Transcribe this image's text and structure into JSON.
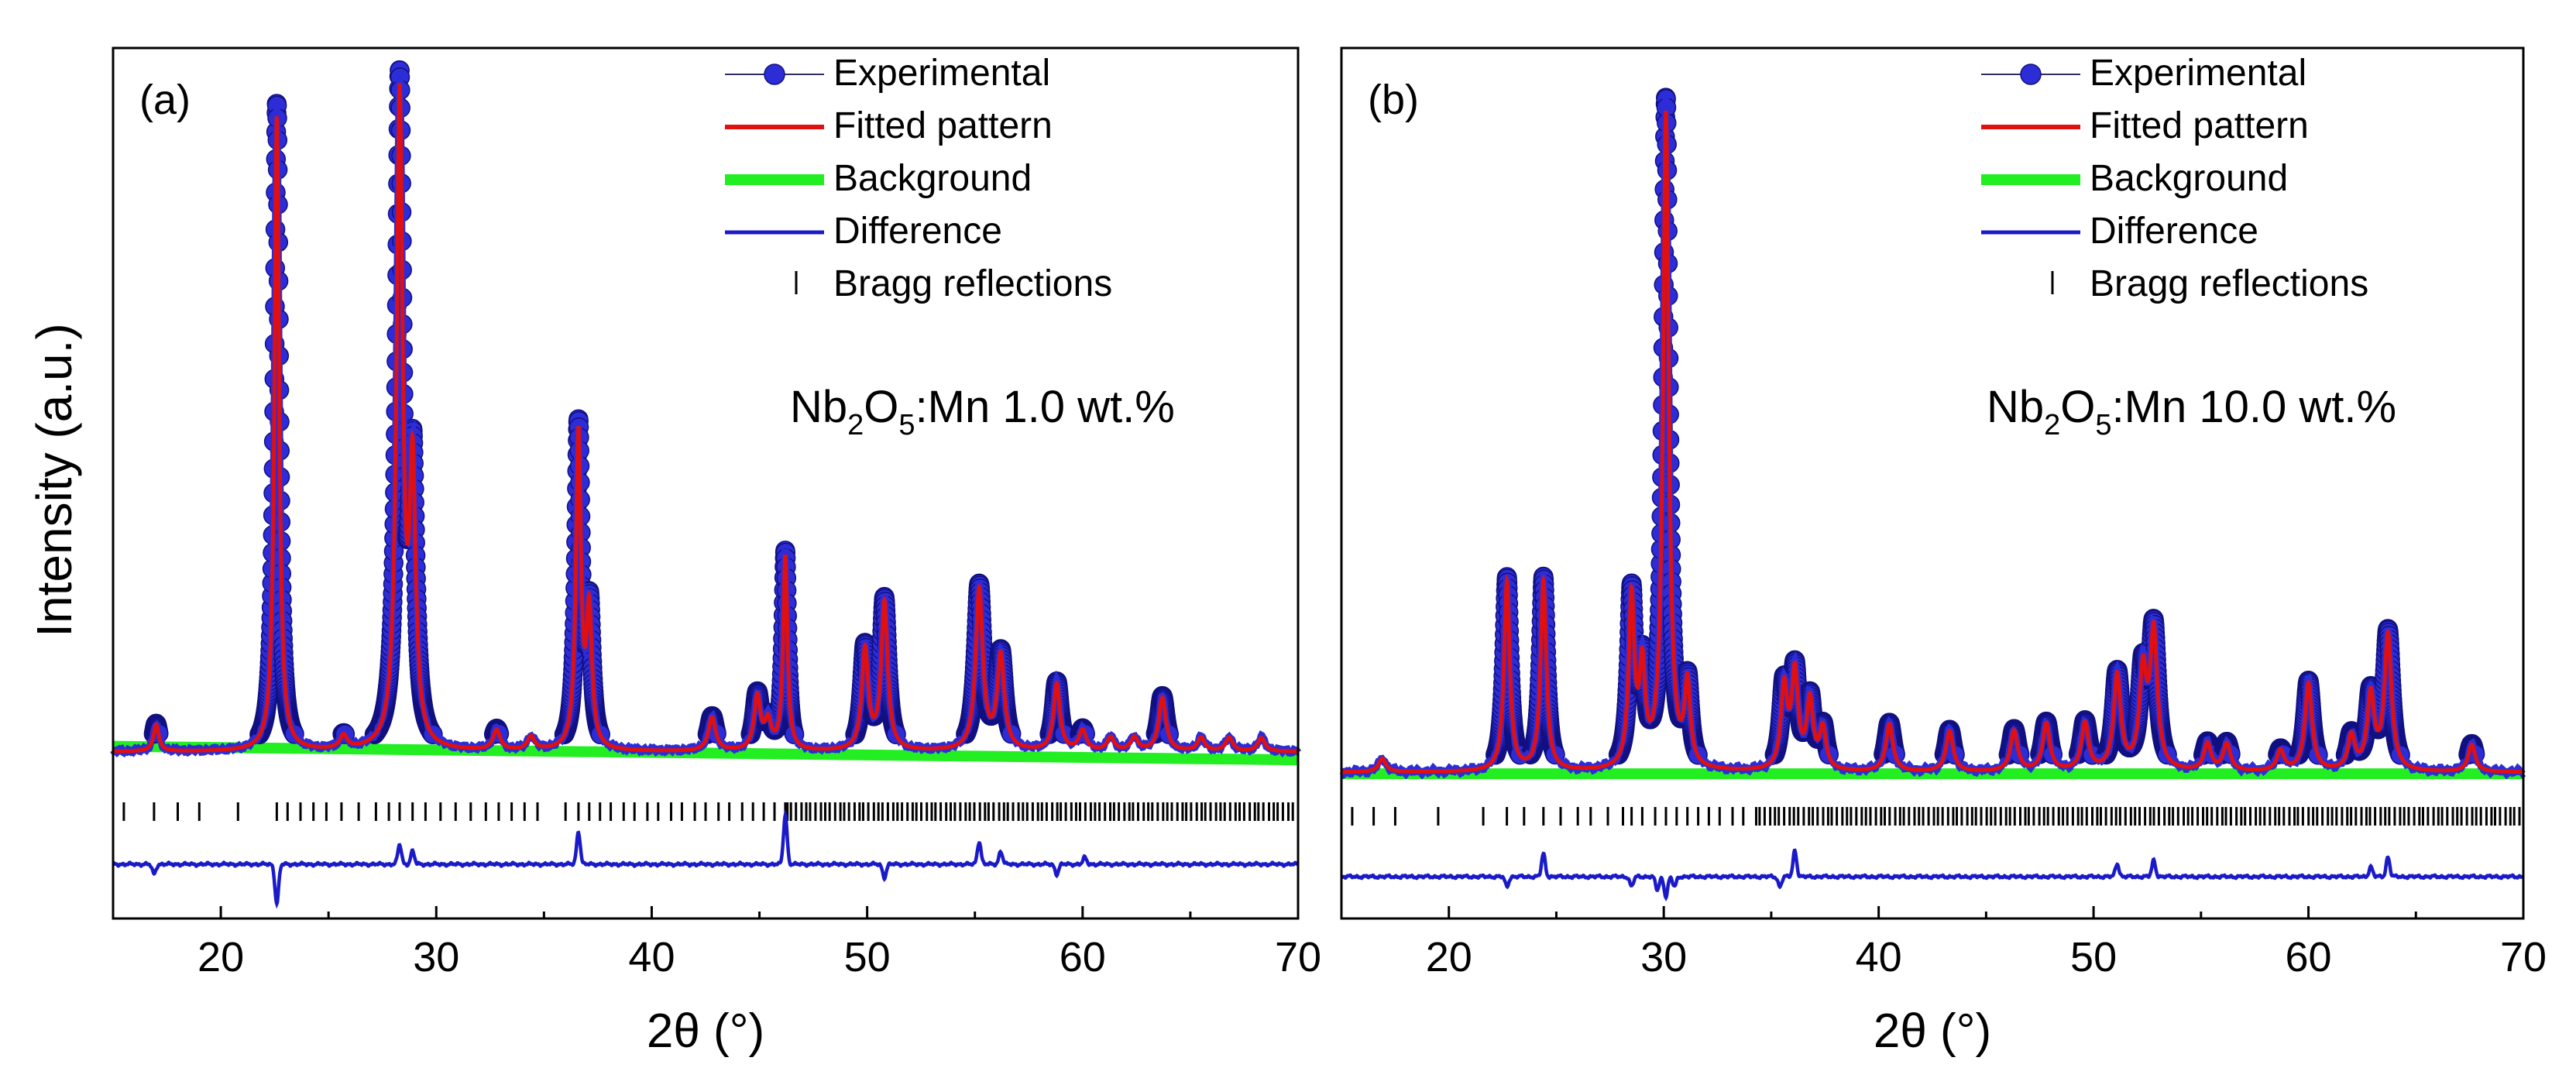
{
  "figure": {
    "ylabel": "Intensity (a.u.)",
    "xlabel": "2θ (°)",
    "legend": [
      {
        "key": "experimental",
        "label": "Experimental"
      },
      {
        "key": "fitted",
        "label": "Fitted pattern"
      },
      {
        "key": "background",
        "label": "Background"
      },
      {
        "key": "difference",
        "label": "Difference"
      },
      {
        "key": "bragg",
        "label": "Bragg reflections"
      }
    ]
  },
  "colors": {
    "experimental": "#2d2dd8",
    "fitted": "#e01010",
    "background": "#22ee22",
    "difference": "#1a1ac8",
    "bragg": "#000000"
  },
  "chart_data": [
    {
      "type": "line",
      "panel_label": "(a)",
      "sample": {
        "formula_main": "Nb",
        "sub1": "2",
        "formula_mid": "O",
        "sub2": "5",
        "suffix": ":Mn 1.0 wt.%"
      },
      "xlim": [
        15,
        70
      ],
      "xticks": [
        20,
        30,
        40,
        50,
        60,
        70
      ],
      "xlabel": "2θ (°)",
      "ylabel": "Intensity (a.u.)",
      "ylim": [
        0,
        100
      ],
      "baseline": 2,
      "background": [
        3,
        1
      ],
      "peaks": [
        {
          "x": 17.0,
          "h": 4,
          "w": 0.15
        },
        {
          "x": 22.6,
          "h": 95,
          "w": 0.13
        },
        {
          "x": 25.7,
          "h": 2,
          "w": 0.2
        },
        {
          "x": 28.3,
          "h": 97,
          "w": 0.17
        },
        {
          "x": 28.9,
          "h": 40,
          "w": 0.17
        },
        {
          "x": 32.8,
          "h": 3,
          "w": 0.2
        },
        {
          "x": 34.4,
          "h": 2,
          "w": 0.2
        },
        {
          "x": 36.6,
          "h": 47,
          "w": 0.14
        },
        {
          "x": 37.1,
          "h": 20,
          "w": 0.15
        },
        {
          "x": 42.8,
          "h": 5,
          "w": 0.2
        },
        {
          "x": 44.9,
          "h": 8,
          "w": 0.18
        },
        {
          "x": 45.4,
          "h": 4,
          "w": 0.18
        },
        {
          "x": 46.2,
          "h": 29,
          "w": 0.12
        },
        {
          "x": 49.9,
          "h": 15,
          "w": 0.18
        },
        {
          "x": 50.8,
          "h": 22,
          "w": 0.18
        },
        {
          "x": 55.2,
          "h": 24,
          "w": 0.2
        },
        {
          "x": 56.2,
          "h": 14,
          "w": 0.2
        },
        {
          "x": 58.8,
          "h": 10,
          "w": 0.18
        },
        {
          "x": 60.0,
          "h": 3,
          "w": 0.2
        },
        {
          "x": 61.3,
          "h": 2,
          "w": 0.2
        },
        {
          "x": 62.4,
          "h": 2,
          "w": 0.2
        },
        {
          "x": 63.7,
          "h": 8,
          "w": 0.2
        },
        {
          "x": 65.5,
          "h": 2,
          "w": 0.2
        },
        {
          "x": 66.8,
          "h": 2,
          "w": 0.2
        },
        {
          "x": 68.3,
          "h": 2,
          "w": 0.2
        }
      ],
      "bragg_dense_from": 46,
      "bragg_reflections": [
        15.5,
        16.9,
        18.0,
        19.0,
        20.8,
        22.6,
        23.1,
        23.7,
        24.3,
        24.9,
        25.6,
        26.4,
        27.2,
        27.8,
        28.3,
        28.9,
        29.5,
        30.2,
        30.9,
        31.6,
        32.3,
        32.9,
        33.5,
        34.1,
        34.7,
        36.0,
        36.6,
        37.1,
        37.6,
        38.1,
        38.7,
        39.2,
        39.8,
        40.3,
        40.9,
        41.4,
        42.0,
        42.5,
        43.1,
        43.6,
        44.2,
        44.7,
        45.2,
        45.7,
        46.2
      ],
      "difference_features": [
        {
          "x": 16.9,
          "d": -3
        },
        {
          "x": 22.6,
          "d": -12
        },
        {
          "x": 28.3,
          "d": 6
        },
        {
          "x": 28.9,
          "d": 4
        },
        {
          "x": 36.6,
          "d": 10
        },
        {
          "x": 46.2,
          "d": 15
        },
        {
          "x": 50.8,
          "d": -4
        },
        {
          "x": 55.2,
          "d": 7
        },
        {
          "x": 56.2,
          "d": 4
        },
        {
          "x": 58.8,
          "d": -3
        },
        {
          "x": 60.1,
          "d": 2
        }
      ]
    },
    {
      "type": "line",
      "panel_label": "(b)",
      "sample": {
        "formula_main": "Nb",
        "sub1": "2",
        "formula_mid": "O",
        "sub2": "5",
        "suffix": ":Mn 10.0 wt.%"
      },
      "xlim": [
        15,
        70
      ],
      "xticks": [
        20,
        30,
        40,
        50,
        60,
        70
      ],
      "xlabel": "2θ (°)",
      "ylabel": "Intensity (a.u.)",
      "ylim": [
        0,
        100
      ],
      "baseline": 1,
      "background": [
        1,
        1
      ],
      "peaks": [
        {
          "x": 16.9,
          "h": 2,
          "w": 0.2
        },
        {
          "x": 22.7,
          "h": 28,
          "w": 0.16
        },
        {
          "x": 24.4,
          "h": 28,
          "w": 0.16
        },
        {
          "x": 28.5,
          "h": 25,
          "w": 0.16
        },
        {
          "x": 29.0,
          "h": 14,
          "w": 0.16
        },
        {
          "x": 30.1,
          "h": 97,
          "w": 0.16
        },
        {
          "x": 31.1,
          "h": 12,
          "w": 0.16
        },
        {
          "x": 35.6,
          "h": 12,
          "w": 0.18
        },
        {
          "x": 36.1,
          "h": 14,
          "w": 0.18
        },
        {
          "x": 36.8,
          "h": 10,
          "w": 0.18
        },
        {
          "x": 37.4,
          "h": 6,
          "w": 0.18
        },
        {
          "x": 40.5,
          "h": 7,
          "w": 0.2
        },
        {
          "x": 43.3,
          "h": 6,
          "w": 0.2
        },
        {
          "x": 46.3,
          "h": 6,
          "w": 0.2
        },
        {
          "x": 47.8,
          "h": 7,
          "w": 0.2
        },
        {
          "x": 49.6,
          "h": 7,
          "w": 0.2
        },
        {
          "x": 51.1,
          "h": 14,
          "w": 0.2
        },
        {
          "x": 52.3,
          "h": 14,
          "w": 0.2
        },
        {
          "x": 52.8,
          "h": 20,
          "w": 0.2
        },
        {
          "x": 55.3,
          "h": 4,
          "w": 0.2
        },
        {
          "x": 56.2,
          "h": 4,
          "w": 0.2
        },
        {
          "x": 58.7,
          "h": 3,
          "w": 0.2
        },
        {
          "x": 60.0,
          "h": 13,
          "w": 0.2
        },
        {
          "x": 62.0,
          "h": 5,
          "w": 0.2
        },
        {
          "x": 62.9,
          "h": 11,
          "w": 0.2
        },
        {
          "x": 63.7,
          "h": 20,
          "w": 0.2
        },
        {
          "x": 67.6,
          "h": 4,
          "w": 0.2
        }
      ],
      "bragg_dense_from": 34,
      "bragg_reflections": [
        15.5,
        16.5,
        17.5,
        19.5,
        21.6,
        22.7,
        23.5,
        24.4,
        25.2,
        26.0,
        26.6,
        27.4,
        28.1,
        28.5,
        29.0,
        29.6,
        30.1,
        30.6,
        31.1,
        31.6,
        32.1,
        32.6,
        33.2,
        33.7
      ],
      "difference_features": [
        {
          "x": 22.7,
          "d": -3
        },
        {
          "x": 24.4,
          "d": 7
        },
        {
          "x": 28.5,
          "d": -3
        },
        {
          "x": 29.7,
          "d": -4
        },
        {
          "x": 30.1,
          "d": -6
        },
        {
          "x": 30.5,
          "d": -3
        },
        {
          "x": 35.4,
          "d": -3
        },
        {
          "x": 36.1,
          "d": 8
        },
        {
          "x": 51.1,
          "d": 4
        },
        {
          "x": 52.8,
          "d": 5
        },
        {
          "x": 62.9,
          "d": 3
        },
        {
          "x": 63.7,
          "d": 6
        }
      ]
    }
  ]
}
